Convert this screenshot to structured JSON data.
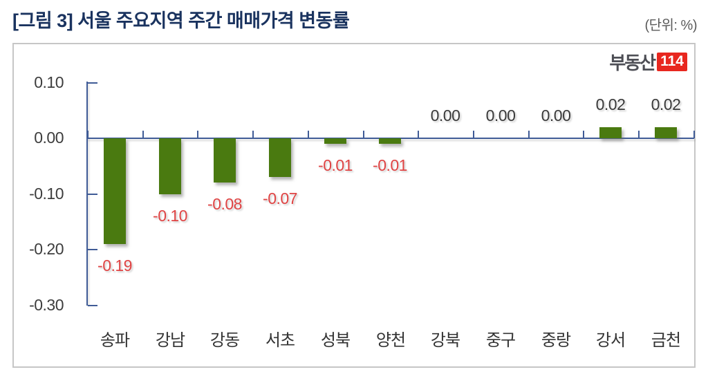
{
  "header": {
    "title": "[그림 3] 서울 주요지역 주간 매매가격 변동률",
    "unit_label": "(단위: %)"
  },
  "logo": {
    "text": "부동산",
    "badge": "114"
  },
  "colors": {
    "bar": "#4a7a10",
    "axis": "#3f5b96",
    "negative_label": "#e04444",
    "nonnegative_label": "#3a3a3a",
    "title": "#1a335f",
    "border": "#c6c6c6",
    "logo_text": "#4d4e55",
    "logo_badge_bg": "#e8271f"
  },
  "chart_data": {
    "type": "bar",
    "title": "서울 주요지역 주간 매매가격 변동률",
    "categories": [
      "송파",
      "강남",
      "강동",
      "서초",
      "성북",
      "양천",
      "강북",
      "중구",
      "중랑",
      "강서",
      "금천"
    ],
    "values": [
      -0.19,
      -0.1,
      -0.08,
      -0.07,
      -0.01,
      -0.01,
      0.0,
      0.0,
      0.0,
      0.02,
      0.02
    ],
    "data_labels": [
      "-0.19",
      "-0.10",
      "-0.08",
      "-0.07",
      "-0.01",
      "-0.01",
      "0.00",
      "0.00",
      "0.00",
      "0.02",
      "0.02"
    ],
    "xlabel": "",
    "ylabel": "",
    "ylim": [
      -0.3,
      0.1
    ],
    "yticks": [
      0.1,
      0.0,
      -0.1,
      -0.2,
      -0.3
    ],
    "ytick_labels": [
      "0.10",
      "0.00",
      "-0.10",
      "-0.20",
      "-0.30"
    ],
    "grid": false,
    "legend": "none",
    "data_label_position": "outside_end",
    "bar_color": "#4a7a10",
    "negative_label_color": "#e04444"
  }
}
